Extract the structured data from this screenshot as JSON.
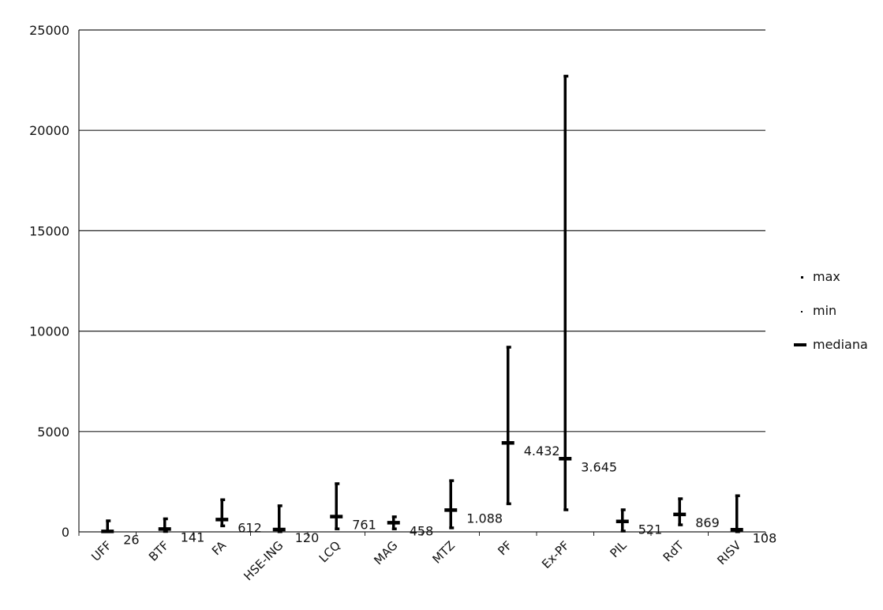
{
  "chart_data": {
    "type": "error-bar",
    "title": "",
    "xlabel": "",
    "ylabel": "",
    "ylim": [
      0,
      25000
    ],
    "yticks": [
      "0",
      "5000",
      "10000",
      "15000",
      "20000",
      "25000"
    ],
    "grid": true,
    "legend_position": "right",
    "legend": [
      "max",
      "min",
      "mediana"
    ],
    "categories": [
      "UFF",
      "BTF",
      "FA",
      "HSE-ING",
      "LCQ",
      "MAG",
      "MTZ",
      "PF",
      "Ex-PF",
      "PIL",
      "RdT",
      "RISV"
    ],
    "series": [
      {
        "name": "max",
        "values": [
          550,
          650,
          1600,
          1300,
          2400,
          750,
          2550,
          9200,
          22700,
          1100,
          1650,
          1800
        ]
      },
      {
        "name": "min",
        "values": [
          10,
          20,
          300,
          10,
          150,
          150,
          200,
          1400,
          1100,
          40,
          350,
          10
        ]
      },
      {
        "name": "mediana",
        "values": [
          26,
          141,
          612,
          120,
          761,
          458,
          1088,
          4432,
          3645,
          521,
          869,
          108
        ]
      }
    ],
    "data_labels": [
      "26",
      "141",
      "612",
      "120",
      "761",
      "458",
      "1.088",
      "4.432",
      "3.645",
      "521",
      "869",
      "108"
    ]
  }
}
